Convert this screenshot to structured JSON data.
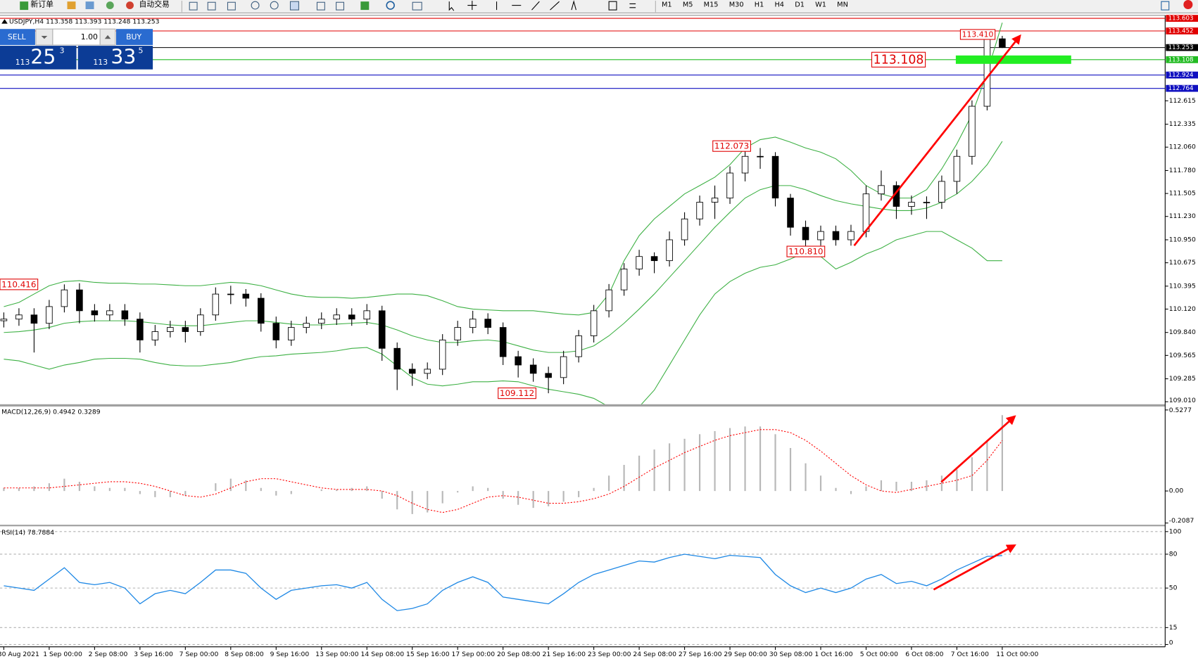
{
  "toolbar": {
    "new_order": "新订单",
    "auto_trading": "自动交易",
    "timeframes": [
      "M1",
      "M5",
      "M15",
      "M30",
      "H1",
      "H4",
      "D1",
      "W1",
      "MN"
    ]
  },
  "trade_panel": {
    "sell": "SELL",
    "lots": "1.00",
    "buy": "BUY",
    "bid": {
      "big": "113",
      "pips": "25",
      "point": "3"
    },
    "ask": {
      "big": "113",
      "pips": "33",
      "point": "5"
    }
  },
  "chart_data": [
    {
      "type": "candlestick",
      "title": "USDJPY,H4",
      "ohlc": [
        113.358,
        113.393,
        113.248,
        113.253
      ],
      "categories": [
        "30 Aug 2021",
        null,
        null,
        "1 Sep 00:00",
        null,
        null,
        "2 Sep 08:00",
        null,
        null,
        "3 Sep 16:00",
        null,
        null,
        "7 Sep 00:00",
        null,
        null,
        "8 Sep 08:00",
        null,
        null,
        "9 Sep 16:00",
        null,
        null,
        "13 Sep 00:00",
        null,
        null,
        "14 Sep 08:00",
        null,
        null,
        "15 Sep 16:00",
        null,
        null,
        "17 Sep 00:00",
        null,
        null,
        "20 Sep 08:00",
        null,
        null,
        "21 Sep 16:00",
        null,
        null,
        "23 Sep 00:00",
        null,
        null,
        "24 Sep 08:00",
        null,
        null,
        "27 Sep 16:00",
        null,
        null,
        "29 Sep 00:00",
        null,
        null,
        "30 Sep 08:00",
        null,
        null,
        "1 Oct 16:00",
        null,
        null,
        "5 Oct 00:00",
        null,
        null,
        "6 Oct 08:00",
        null,
        null,
        "7 Oct 16:00",
        null,
        null,
        "11 Oct 00:00"
      ],
      "open": [
        109.98,
        110.0,
        110.05,
        109.95,
        110.15,
        110.35,
        110.1,
        110.05,
        110.1,
        110.0,
        109.75,
        109.85,
        109.9,
        109.85,
        110.05,
        110.3,
        110.3,
        110.25,
        109.95,
        109.75,
        109.9,
        109.95,
        110.0,
        110.05,
        110.0,
        110.1,
        109.65,
        109.4,
        109.35,
        109.4,
        109.75,
        109.9,
        110.0,
        109.9,
        109.55,
        109.45,
        109.35,
        109.3,
        109.55,
        109.8,
        110.1,
        110.35,
        110.6,
        110.75,
        110.7,
        110.95,
        111.2,
        111.4,
        111.45,
        111.75,
        111.95,
        111.95,
        111.45,
        111.1,
        110.95,
        111.05,
        110.95,
        111.05,
        111.5,
        111.6,
        111.35,
        111.4,
        111.4,
        111.65,
        111.95,
        112.55,
        113.358
      ],
      "high": [
        110.08,
        110.13,
        110.13,
        110.23,
        110.416,
        110.43,
        110.18,
        110.18,
        110.18,
        110.08,
        109.93,
        109.98,
        109.98,
        110.13,
        110.38,
        110.4,
        110.36,
        110.31,
        110.03,
        109.98,
        110.03,
        110.08,
        110.13,
        110.13,
        110.18,
        110.16,
        109.72,
        109.47,
        109.48,
        109.82,
        109.98,
        110.1,
        110.07,
        109.96,
        109.62,
        109.53,
        109.43,
        109.62,
        109.87,
        110.17,
        110.42,
        110.67,
        110.83,
        110.8,
        111.05,
        111.28,
        111.48,
        111.6,
        111.83,
        112.073,
        112.05,
        112.0,
        111.5,
        111.18,
        111.12,
        111.12,
        111.13,
        111.6,
        111.78,
        111.65,
        111.48,
        111.47,
        111.72,
        112.03,
        112.62,
        113.41,
        113.393
      ],
      "low": [
        109.9,
        109.92,
        109.6,
        109.88,
        110.08,
        109.95,
        109.97,
        109.98,
        109.92,
        109.6,
        109.68,
        109.78,
        109.72,
        109.8,
        109.98,
        110.18,
        110.15,
        109.85,
        109.65,
        109.68,
        109.83,
        109.88,
        109.93,
        109.92,
        109.93,
        109.5,
        109.15,
        109.2,
        109.28,
        109.33,
        109.68,
        109.83,
        109.82,
        109.45,
        109.3,
        109.25,
        109.112,
        109.22,
        109.48,
        109.72,
        110.02,
        110.28,
        110.52,
        110.55,
        110.63,
        110.88,
        111.12,
        111.2,
        111.38,
        111.65,
        111.8,
        111.35,
        111.0,
        110.81,
        110.88,
        110.88,
        110.88,
        110.98,
        111.42,
        111.2,
        111.25,
        111.2,
        111.32,
        111.5,
        111.85,
        112.5,
        113.248
      ],
      "close": [
        110.0,
        110.05,
        109.95,
        110.15,
        110.35,
        110.1,
        110.05,
        110.1,
        110.0,
        109.75,
        109.85,
        109.9,
        109.85,
        110.05,
        110.3,
        110.3,
        110.25,
        109.95,
        109.75,
        109.9,
        109.95,
        110.0,
        110.05,
        110.0,
        110.1,
        109.65,
        109.4,
        109.35,
        109.4,
        109.75,
        109.9,
        110.0,
        109.9,
        109.55,
        109.45,
        109.35,
        109.3,
        109.55,
        109.8,
        110.1,
        110.35,
        110.6,
        110.75,
        110.7,
        110.95,
        111.2,
        111.4,
        111.45,
        111.75,
        111.95,
        111.95,
        111.45,
        111.1,
        110.95,
        111.05,
        110.95,
        111.05,
        111.5,
        111.6,
        111.35,
        111.4,
        111.4,
        111.65,
        111.95,
        112.55,
        113.358,
        113.253
      ],
      "bollinger": {
        "color": "#3cb043",
        "upper": [
          110.15,
          110.2,
          110.3,
          110.4,
          110.45,
          110.46,
          110.44,
          110.43,
          110.43,
          110.42,
          110.42,
          110.41,
          110.4,
          110.4,
          110.42,
          110.44,
          110.43,
          110.4,
          110.35,
          110.3,
          110.27,
          110.26,
          110.26,
          110.25,
          110.26,
          110.28,
          110.3,
          110.3,
          110.28,
          110.22,
          110.15,
          110.12,
          110.11,
          110.1,
          110.1,
          110.1,
          110.08,
          110.06,
          110.05,
          110.08,
          110.3,
          110.7,
          111.0,
          111.2,
          111.35,
          111.5,
          111.6,
          111.7,
          111.85,
          112.05,
          112.15,
          112.18,
          112.12,
          112.05,
          112.0,
          111.92,
          111.78,
          111.6,
          111.5,
          111.45,
          111.45,
          111.55,
          111.8,
          112.1,
          112.45,
          112.95,
          113.55
        ],
        "middle": [
          109.84,
          109.85,
          109.87,
          109.9,
          109.95,
          109.97,
          109.98,
          109.98,
          109.98,
          109.97,
          109.95,
          109.93,
          109.92,
          109.92,
          109.94,
          109.96,
          109.98,
          109.98,
          109.96,
          109.94,
          109.93,
          109.93,
          109.94,
          109.95,
          109.96,
          109.93,
          109.87,
          109.8,
          109.75,
          109.72,
          109.72,
          109.74,
          109.75,
          109.73,
          109.68,
          109.63,
          109.6,
          109.6,
          109.62,
          109.68,
          109.8,
          109.95,
          110.12,
          110.3,
          110.5,
          110.7,
          110.9,
          111.1,
          111.28,
          111.45,
          111.55,
          111.6,
          111.6,
          111.55,
          111.48,
          111.42,
          111.38,
          111.35,
          111.32,
          111.3,
          111.3,
          111.33,
          111.4,
          111.5,
          111.65,
          111.85,
          112.13
        ],
        "lower": [
          109.52,
          109.5,
          109.45,
          109.4,
          109.45,
          109.48,
          109.52,
          109.53,
          109.53,
          109.52,
          109.48,
          109.45,
          109.44,
          109.44,
          109.46,
          109.48,
          109.52,
          109.55,
          109.56,
          109.58,
          109.59,
          109.6,
          109.62,
          109.65,
          109.66,
          109.58,
          109.44,
          109.3,
          109.22,
          109.2,
          109.22,
          109.25,
          109.25,
          109.26,
          109.25,
          109.2,
          109.16,
          109.13,
          109.1,
          109.05,
          108.95,
          108.9,
          108.95,
          109.15,
          109.45,
          109.75,
          110.05,
          110.3,
          110.45,
          110.55,
          110.62,
          110.65,
          110.72,
          110.8,
          110.75,
          110.6,
          110.68,
          110.78,
          110.85,
          110.95,
          111.0,
          111.05,
          111.05,
          110.95,
          110.85,
          110.7,
          110.7
        ]
      },
      "ylim": [
        108.98,
        113.64
      ],
      "yticks": [
        {
          "value": 109.01,
          "label": "109.010"
        },
        109.285,
        109.565,
        {
          "value": 109.84,
          "label": "109.840"
        },
        {
          "value": 110.12,
          "label": "110.120"
        },
        110.395,
        110.675,
        {
          "value": 110.95,
          "label": "110.950"
        },
        {
          "value": 111.23,
          "label": "111.230"
        },
        111.505,
        {
          "value": 111.78,
          "label": "111.780"
        },
        {
          "value": 112.06,
          "label": "112.060"
        },
        112.335,
        112.615
      ],
      "grid": false,
      "levels": [
        {
          "value": 113.603,
          "color": "#e00000"
        },
        {
          "value": 113.452,
          "color": "#e00000"
        },
        {
          "value": 113.253,
          "color": "#000000"
        },
        {
          "value": 113.108,
          "color": "#22bb22"
        },
        {
          "value": 112.924,
          "color": "#1010c0"
        },
        {
          "value": 112.764,
          "color": "#1010c0"
        }
      ],
      "annotations": [
        {
          "value": 113.41,
          "label": "113.410"
        },
        {
          "value": 113.108
        },
        {
          "value": 112.073
        },
        {
          "value": 110.81,
          "label": "110.810"
        },
        {
          "value": 110.416
        },
        {
          "value": 109.112
        }
      ]
    },
    {
      "type": "macd",
      "title": "MACD(12,26,9)",
      "current": [
        0.4942,
        0.3289
      ],
      "histogram": {
        "color": "#b8b8b8",
        "values": [
          0.02,
          0.02,
          0.03,
          0.05,
          0.08,
          0.06,
          0.03,
          0.02,
          0.02,
          -0.02,
          -0.04,
          -0.04,
          -0.03,
          0.0,
          0.05,
          0.08,
          0.07,
          0.02,
          -0.03,
          -0.02,
          0.0,
          0.01,
          0.01,
          0.02,
          0.03,
          -0.05,
          -0.12,
          -0.15,
          -0.14,
          -0.08,
          -0.01,
          0.03,
          0.02,
          -0.05,
          -0.09,
          -0.11,
          -0.1,
          -0.07,
          -0.04,
          0.02,
          0.1,
          0.17,
          0.23,
          0.27,
          0.31,
          0.34,
          0.37,
          0.39,
          0.41,
          0.42,
          0.42,
          0.37,
          0.28,
          0.18,
          0.1,
          0.02,
          -0.02,
          0.03,
          0.07,
          0.06,
          0.06,
          0.07,
          0.1,
          0.14,
          0.22,
          0.33,
          0.4942
        ]
      },
      "signal": {
        "color": "#ff0000",
        "values": [
          0.02,
          0.02,
          0.02,
          0.02,
          0.03,
          0.04,
          0.05,
          0.06,
          0.06,
          0.05,
          0.03,
          0.0,
          -0.03,
          -0.04,
          -0.02,
          0.02,
          0.06,
          0.08,
          0.08,
          0.06,
          0.04,
          0.02,
          0.01,
          0.01,
          0.01,
          0.0,
          -0.03,
          -0.08,
          -0.12,
          -0.14,
          -0.12,
          -0.08,
          -0.04,
          -0.03,
          -0.04,
          -0.06,
          -0.08,
          -0.08,
          -0.07,
          -0.05,
          -0.02,
          0.03,
          0.09,
          0.15,
          0.2,
          0.25,
          0.29,
          0.33,
          0.36,
          0.38,
          0.4,
          0.4,
          0.38,
          0.33,
          0.26,
          0.18,
          0.1,
          0.04,
          0.0,
          -0.01,
          0.01,
          0.03,
          0.05,
          0.07,
          0.1,
          0.2,
          0.3289
        ]
      },
      "ylim": [
        -0.22,
        0.55
      ],
      "yticks": [
        0.5277,
        {
          "value": 0,
          "label": "0.00"
        },
        -0.2087
      ],
      "grid": false
    },
    {
      "type": "line",
      "title": "RSI(14)",
      "current": 78.7884,
      "color": "#1e88e5",
      "values": [
        52,
        50,
        48,
        58,
        68,
        55,
        53,
        55,
        50,
        36,
        45,
        48,
        45,
        55,
        66,
        66,
        63,
        50,
        40,
        48,
        50,
        52,
        53,
        50,
        55,
        40,
        30,
        32,
        36,
        48,
        55,
        60,
        55,
        42,
        40,
        38,
        36,
        45,
        55,
        62,
        66,
        70,
        74,
        73,
        77,
        80,
        78,
        76,
        79,
        78,
        77,
        62,
        52,
        46,
        50,
        46,
        50,
        58,
        62,
        54,
        56,
        52,
        58,
        66,
        72,
        78,
        78.7884
      ],
      "ylim": [
        -2,
        104.7
      ],
      "yticks": [
        100,
        80,
        50,
        15,
        0
      ],
      "grid": true
    }
  ]
}
